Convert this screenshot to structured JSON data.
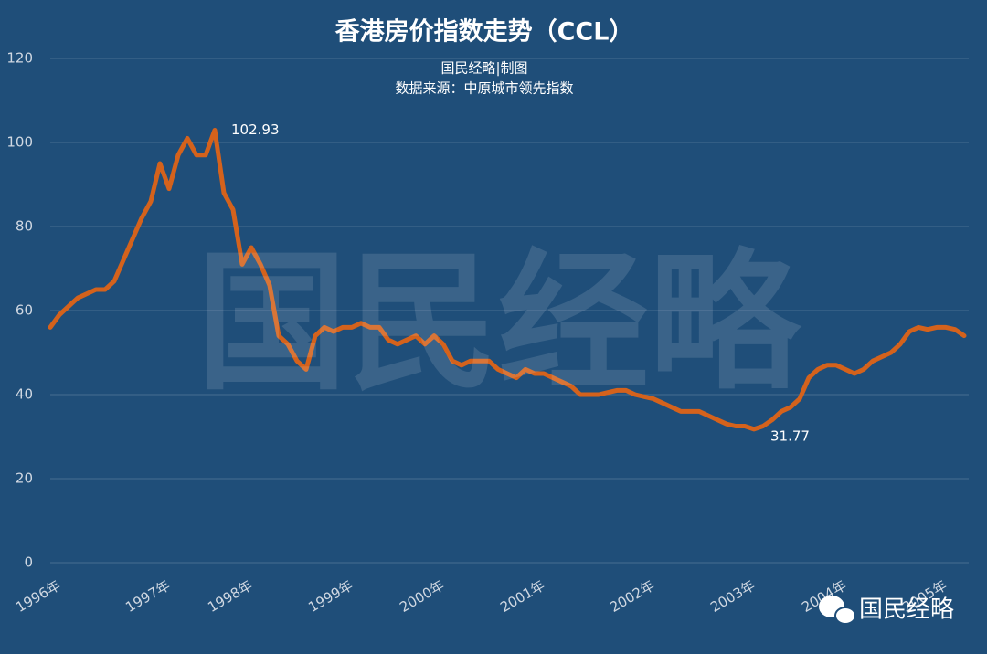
{
  "chart_data": {
    "type": "line",
    "title": "香港房价指数走势（CCL）",
    "subtitle": [
      "国民经略|制图",
      "数据来源：中原城市领先指数"
    ],
    "watermark": "国民经略",
    "logo": "国民经略",
    "categories": [
      null,
      "1996年",
      null,
      null,
      null,
      null,
      null,
      null,
      null,
      null,
      null,
      null,
      null,
      "1997年",
      null,
      null,
      null,
      null,
      null,
      null,
      null,
      null,
      "1998年",
      null,
      null,
      null,
      null,
      null,
      null,
      null,
      null,
      null,
      null,
      "1999年",
      null,
      null,
      null,
      null,
      null,
      null,
      null,
      null,
      null,
      "2000年",
      null,
      null,
      null,
      null,
      null,
      null,
      null,
      null,
      null,
      null,
      "2001年",
      null,
      null,
      null,
      null,
      null,
      null,
      null,
      null,
      null,
      null,
      null,
      "2002年",
      null,
      null,
      null,
      null,
      null,
      null,
      null,
      null,
      null,
      null,
      "2003年",
      null,
      null,
      null,
      null,
      null,
      null,
      null,
      null,
      null,
      "2004年",
      null,
      null,
      null,
      null,
      null,
      null,
      null,
      null,
      null,
      null,
      "2005年",
      null,
      null
    ],
    "series": [
      {
        "name": "CCL",
        "color": "#d4621c",
        "values": [
          56,
          59,
          61,
          63,
          64,
          65,
          65,
          67,
          72,
          77,
          82,
          86,
          95,
          89,
          97,
          101,
          97,
          97,
          102.93,
          88,
          84,
          71,
          75,
          71,
          66,
          54,
          52,
          48,
          46,
          54,
          56,
          55,
          56,
          56,
          57,
          56,
          56,
          53,
          52,
          53,
          54,
          52,
          54,
          52,
          48,
          47,
          48,
          48,
          48,
          46,
          45,
          44,
          46,
          45,
          45,
          44,
          43,
          42,
          40,
          40,
          40,
          40.5,
          41,
          41,
          40,
          39.5,
          39,
          38,
          37,
          36,
          36,
          36,
          35,
          34,
          33,
          32.5,
          32.5,
          31.77,
          32.5,
          34,
          36,
          37,
          39,
          44,
          46,
          47,
          47,
          46,
          45,
          46,
          48,
          49,
          50,
          52,
          55,
          56,
          55.5,
          56,
          56,
          55.5,
          54
        ],
        "value_labels": [
          null,
          null,
          null,
          null,
          null,
          null,
          null,
          null,
          null,
          null,
          null,
          null,
          null,
          null,
          null,
          null,
          null,
          null,
          "102.93",
          null,
          null,
          null,
          null,
          null,
          null,
          null,
          null,
          null,
          null,
          null,
          null,
          null,
          null,
          null,
          null,
          null,
          null,
          null,
          null,
          null,
          null,
          null,
          null,
          null,
          null,
          null,
          null,
          null,
          null,
          null,
          null,
          null,
          null,
          null,
          null,
          null,
          null,
          null,
          null,
          null,
          null,
          null,
          null,
          null,
          null,
          null,
          null,
          null,
          null,
          null,
          null,
          null,
          null,
          null,
          null,
          null,
          null,
          "31.77",
          null,
          null,
          null,
          null,
          null,
          null,
          null,
          null,
          null,
          null,
          null,
          null,
          null,
          null,
          null,
          null,
          null,
          null,
          null,
          null,
          null,
          null,
          null
        ]
      }
    ],
    "ylim": [
      0,
      120
    ],
    "yticks": [
      0,
      20,
      40,
      60,
      80,
      100,
      120
    ],
    "grid": true
  }
}
